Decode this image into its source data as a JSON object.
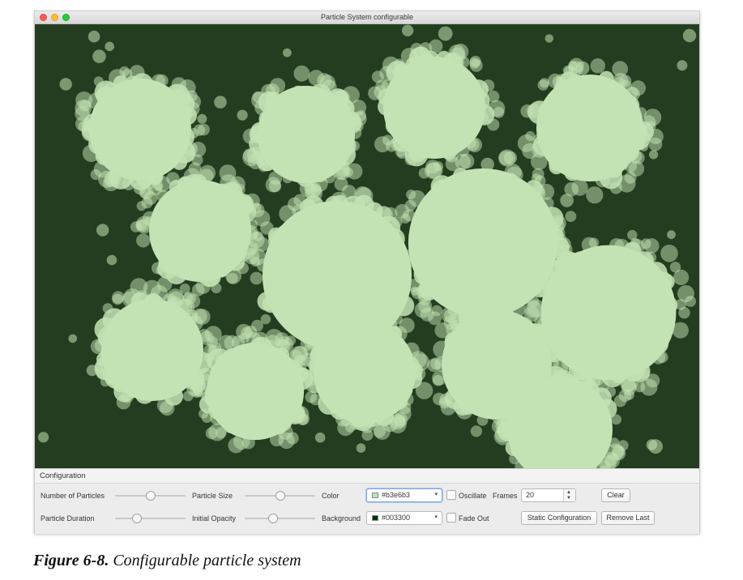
{
  "window": {
    "title": "Particle System configurable"
  },
  "canvas": {
    "background_color": "#243d20",
    "particle_color": "#c3e3b4"
  },
  "config": {
    "header": "Configuration",
    "number_of_particles_label": "Number of Particles",
    "particle_size_label": "Particle Size",
    "particle_duration_label": "Particle Duration",
    "initial_opacity_label": "Initial Opacity",
    "color_label": "Color",
    "color_value": "#b3e6b3",
    "background_label": "Background",
    "background_value": "#003300",
    "oscillate_label": "Oscillate",
    "frames_label": "Frames",
    "frames_value": "20",
    "fade_out_label": "Fade Out",
    "clear_button": "Clear",
    "static_configuration_button": "Static Configuration",
    "remove_last_button": "Remove Last",
    "sliders": {
      "number_of_particles": 0.5,
      "particle_size": 0.5,
      "particle_duration": 0.28,
      "initial_opacity": 0.38
    }
  },
  "caption": {
    "figure_label": "Figure 6-8.",
    "text": "Configurable particle system"
  }
}
